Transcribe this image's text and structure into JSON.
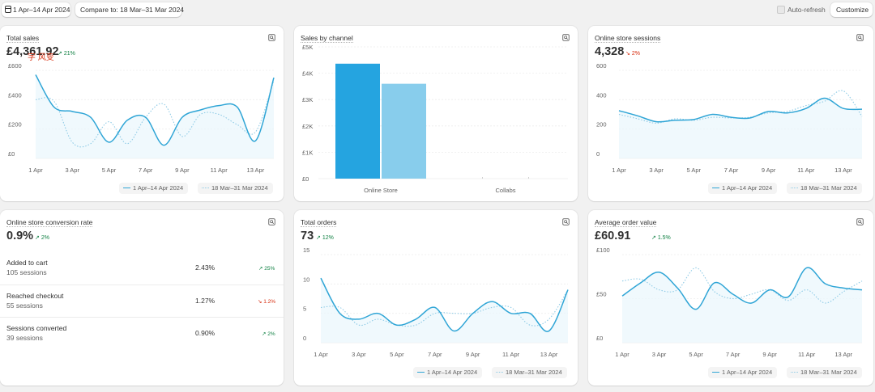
{
  "toolbar": {
    "date_range": "1 Apr–14 Apr 2024",
    "compare": "Compare to: 18 Mar–31 Mar 2024",
    "auto_refresh": "Auto-refresh",
    "customize": "Customize"
  },
  "legend": {
    "current": "1 Apr–14 Apr 2024",
    "previous": "18 Mar–31 Mar 2024"
  },
  "colors": {
    "current": "#2fa5d6",
    "previous": "#8fcbe6",
    "bar_primary": "#25a4e0",
    "bar_secondary": "#88cdec",
    "up": "#108043",
    "down": "#d72c0d"
  },
  "total_sales": {
    "title": "Total sales",
    "value": "£4,361.92",
    "delta": "21%",
    "overlay_text": "字 风变"
  },
  "sales_by_channel": {
    "title": "Sales by channel"
  },
  "sessions": {
    "title": "Online store sessions",
    "value": "4,328",
    "delta": "2%"
  },
  "conversion": {
    "title": "Online store conversion rate",
    "value": "0.9%",
    "delta": "2%",
    "rows": [
      {
        "name": "Added to cart",
        "sub": "105 sessions",
        "pct": "2.43%",
        "chg": "25%",
        "dir": "up"
      },
      {
        "name": "Reached checkout",
        "sub": "55 sessions",
        "pct": "1.27%",
        "chg": "1.2%",
        "dir": "down"
      },
      {
        "name": "Sessions converted",
        "sub": "39 sessions",
        "pct": "0.90%",
        "chg": "2%",
        "dir": "up"
      }
    ]
  },
  "orders": {
    "title": "Total orders",
    "value": "73",
    "delta": "12%"
  },
  "aov": {
    "title": "Average order value",
    "value": "£60.91",
    "delta": "1.5%"
  },
  "chart_data": [
    {
      "id": "total_sales",
      "type": "line",
      "x": [
        "1 Apr",
        "2 Apr",
        "3 Apr",
        "4 Apr",
        "5 Apr",
        "6 Apr",
        "7 Apr",
        "8 Apr",
        "9 Apr",
        "10 Apr",
        "11 Apr",
        "12 Apr",
        "13 Apr",
        "14 Apr"
      ],
      "xticks": [
        "1 Apr",
        "3 Apr",
        "5 Apr",
        "7 Apr",
        "9 Apr",
        "11 Apr",
        "13 Apr"
      ],
      "yticks": [
        "£0",
        "£200",
        "£400",
        "£600"
      ],
      "ylim": [
        0,
        600
      ],
      "series": [
        {
          "values": [
            570,
            350,
            320,
            280,
            110,
            260,
            280,
            90,
            280,
            330,
            360,
            350,
            120,
            550
          ]
        },
        {
          "values": [
            400,
            390,
            110,
            100,
            250,
            100,
            280,
            370,
            150,
            300,
            300,
            230,
            180,
            530
          ]
        }
      ]
    },
    {
      "id": "sales_by_channel",
      "type": "bar",
      "categories": [
        "Online Store",
        "Collabs"
      ],
      "series": [
        {
          "values": [
            4361.92,
            0
          ]
        },
        {
          "values": [
            3600,
            0
          ]
        }
      ],
      "yticks": [
        "£0",
        "£1K",
        "£2K",
        "£3K",
        "£4K",
        "£5K"
      ],
      "ylim": [
        0,
        5000
      ]
    },
    {
      "id": "sessions",
      "type": "line",
      "x": [
        "1 Apr",
        "2 Apr",
        "3 Apr",
        "4 Apr",
        "5 Apr",
        "6 Apr",
        "7 Apr",
        "8 Apr",
        "9 Apr",
        "10 Apr",
        "11 Apr",
        "12 Apr",
        "13 Apr",
        "14 Apr"
      ],
      "xticks": [
        "1 Apr",
        "3 Apr",
        "5 Apr",
        "7 Apr",
        "9 Apr",
        "11 Apr",
        "13 Apr"
      ],
      "yticks": [
        "0",
        "200",
        "400",
        "600"
      ],
      "ylim": [
        0,
        600
      ],
      "series": [
        {
          "values": [
            325,
            290,
            250,
            260,
            265,
            300,
            280,
            275,
            320,
            310,
            340,
            410,
            340,
            335
          ]
        },
        {
          "values": [
            300,
            270,
            240,
            270,
            260,
            280,
            275,
            280,
            310,
            320,
            360,
            390,
            460,
            285
          ]
        }
      ]
    },
    {
      "id": "orders",
      "type": "line",
      "x": [
        "1 Apr",
        "2 Apr",
        "3 Apr",
        "4 Apr",
        "5 Apr",
        "6 Apr",
        "7 Apr",
        "8 Apr",
        "9 Apr",
        "10 Apr",
        "11 Apr",
        "12 Apr",
        "13 Apr",
        "14 Apr"
      ],
      "xticks": [
        "1 Apr",
        "3 Apr",
        "5 Apr",
        "7 Apr",
        "9 Apr",
        "11 Apr",
        "13 Apr"
      ],
      "yticks": [
        "0",
        "5",
        "10",
        "15"
      ],
      "ylim": [
        0,
        15
      ],
      "series": [
        {
          "values": [
            11,
            5,
            4,
            5,
            3,
            4,
            6,
            2,
            5,
            7,
            5,
            5,
            2,
            9
          ]
        },
        {
          "values": [
            6,
            6,
            3,
            4,
            3,
            3,
            5,
            5,
            5,
            6,
            6,
            3,
            4,
            9
          ]
        }
      ]
    },
    {
      "id": "aov",
      "type": "line",
      "x": [
        "1 Apr",
        "2 Apr",
        "3 Apr",
        "4 Apr",
        "5 Apr",
        "6 Apr",
        "7 Apr",
        "8 Apr",
        "9 Apr",
        "10 Apr",
        "11 Apr",
        "12 Apr",
        "13 Apr",
        "14 Apr"
      ],
      "xticks": [
        "1 Apr",
        "3 Apr",
        "5 Apr",
        "7 Apr",
        "9 Apr",
        "11 Apr",
        "13 Apr"
      ],
      "yticks": [
        "£0",
        "£50",
        "£100"
      ],
      "ylim": [
        0,
        100
      ],
      "series": [
        {
          "values": [
            53,
            68,
            80,
            62,
            38,
            68,
            55,
            45,
            60,
            52,
            85,
            67,
            62,
            60
          ]
        },
        {
          "values": [
            70,
            72,
            60,
            60,
            85,
            58,
            50,
            55,
            60,
            48,
            60,
            45,
            58,
            70
          ]
        }
      ]
    }
  ]
}
